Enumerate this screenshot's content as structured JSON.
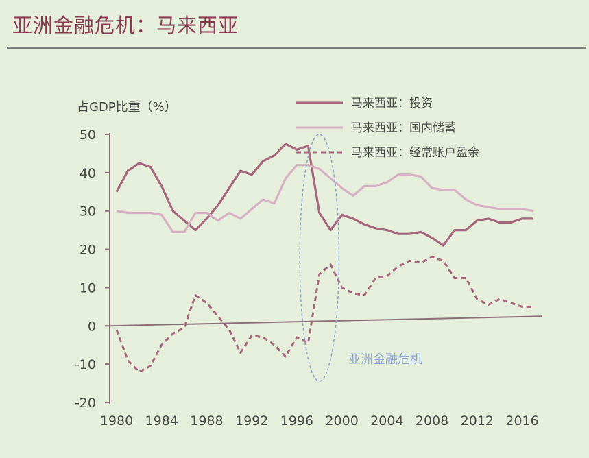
{
  "slide": {
    "title": "亚洲金融危机：马来西亚"
  },
  "colors": {
    "background": "#e6efdb",
    "title": "#8a3a52",
    "investment": "#a5657c",
    "savings": "#d7b0c5",
    "current_account": "#a5657c",
    "ellipse": "#8aa6cf",
    "annotation": "#8fa7d3",
    "axis": "#8a6f7a"
  },
  "chart_data": {
    "type": "line",
    "ylabel": "占GDP比重（%）",
    "xlabel": "",
    "ylim": [
      -20,
      50
    ],
    "y_ticks": [
      50,
      40,
      30,
      20,
      10,
      0,
      -10,
      -20
    ],
    "xlim": [
      1980,
      2017
    ],
    "x_ticks": [
      1980,
      1984,
      1988,
      1992,
      1996,
      2000,
      2004,
      2008,
      2012,
      2016
    ],
    "grid": false,
    "legend_position": "top-right",
    "x": [
      1980,
      1981,
      1982,
      1983,
      1984,
      1985,
      1986,
      1987,
      1988,
      1989,
      1990,
      1991,
      1992,
      1993,
      1994,
      1995,
      1996,
      1997,
      1998,
      1999,
      2000,
      2001,
      2002,
      2003,
      2004,
      2005,
      2006,
      2007,
      2008,
      2009,
      2010,
      2011,
      2012,
      2013,
      2014,
      2015,
      2016,
      2017
    ],
    "series": [
      {
        "name": "马来西亚：投资",
        "style": "solid",
        "values": [
          35,
          40.5,
          42.5,
          41.5,
          36.5,
          30,
          27.5,
          25,
          28,
          31.5,
          36,
          40.5,
          39.5,
          43,
          44.5,
          47.5,
          46,
          47,
          29.5,
          25,
          29,
          28,
          26.5,
          25.5,
          25,
          24,
          24,
          24.5,
          23,
          21,
          25,
          25,
          27.5,
          28,
          27,
          27,
          28,
          28
        ]
      },
      {
        "name": "马来西亚：国内储蓄",
        "style": "light",
        "values": [
          30,
          29.5,
          29.5,
          29.5,
          29,
          24.5,
          24.5,
          29.5,
          29.5,
          27.5,
          29.5,
          28,
          30.5,
          33,
          32,
          38.5,
          42,
          42,
          41,
          38.5,
          36,
          34,
          36.5,
          36.5,
          37.5,
          39.5,
          39.5,
          39,
          36,
          35.5,
          35.5,
          33,
          31.5,
          31,
          30.5,
          30.5,
          30.5,
          30
        ]
      },
      {
        "name": "马来西亚：经常账户盈余",
        "style": "dashed",
        "values": [
          -1,
          -9,
          -12,
          -10.5,
          -5,
          -2,
          -0.5,
          8,
          6,
          2.5,
          -1,
          -7,
          -2.5,
          -3,
          -5,
          -8,
          -3,
          -4.5,
          13.5,
          16,
          10,
          8.5,
          8,
          12.5,
          13,
          15.5,
          17,
          16.5,
          18,
          17,
          12.5,
          12.5,
          7,
          5.5,
          7,
          6,
          5,
          5
        ]
      }
    ],
    "annotation": {
      "text": "亚洲金融危机",
      "x_range": [
        1996.5,
        1999.5
      ]
    }
  }
}
